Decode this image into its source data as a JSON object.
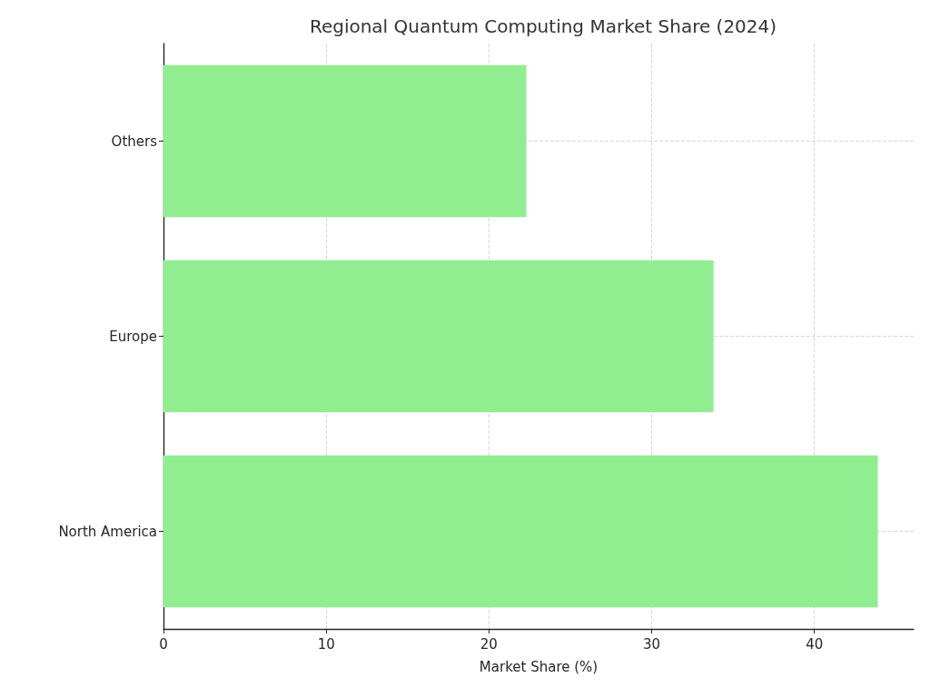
{
  "chart_data": {
    "type": "bar",
    "orientation": "horizontal",
    "title": "Regional Quantum Computing Market Share (2024)",
    "xlabel": "Market Share (%)",
    "categories": [
      "Others",
      "Europe",
      "North America"
    ],
    "values": [
      22.3,
      33.8,
      43.9
    ],
    "color": "#90ee90",
    "xlim": [
      0,
      46.1
    ],
    "xticks": [
      0,
      10,
      20,
      30,
      40
    ],
    "grid": true
  }
}
